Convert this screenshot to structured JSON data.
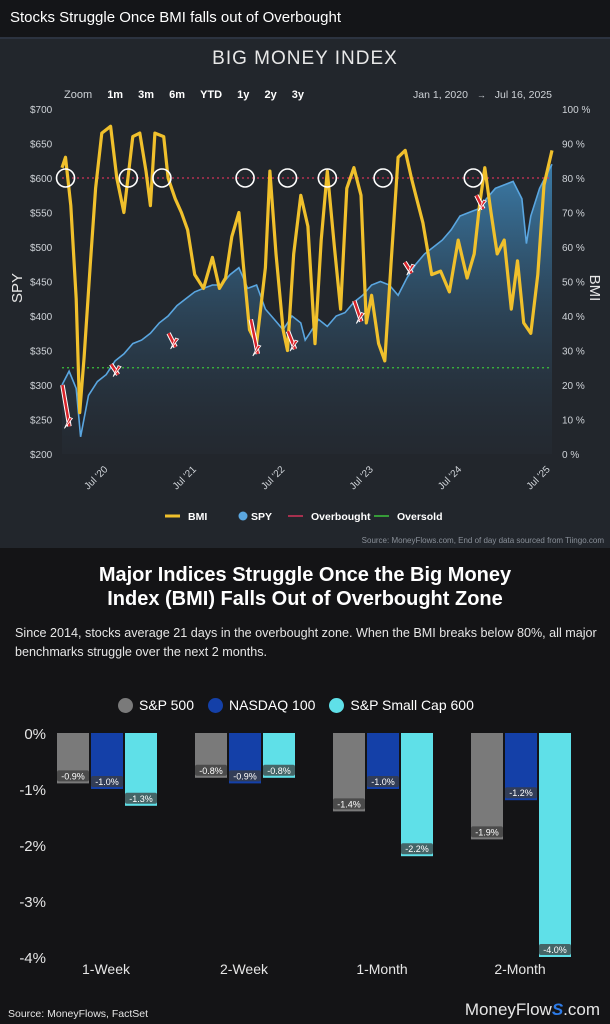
{
  "header": {
    "title": "Stocks Struggle Once BMI falls out of Overbought"
  },
  "bmi_panel": {
    "title": "BIG MONEY INDEX",
    "zoom_label": "Zoom",
    "zoom_options": [
      "1m",
      "3m",
      "6m",
      "YTD",
      "1y",
      "2y",
      "3y"
    ],
    "date_from": "Jan 1, 2020",
    "date_arrow": "→",
    "date_to": "Jul 16, 2025",
    "source": "Source: MoneyFlows.com, End of day data sourced from Tiingo.com"
  },
  "bars_panel": {
    "headline_line1": "Major Indices Struggle Once the Big Money",
    "headline_line2": "Index (BMI) Falls Out of Overbought Zone",
    "description": "Since 2014, stocks average 21 days in the overbought zone. When the BMI breaks below 80%, all major benchmarks struggle over the next 2 months.",
    "source": "Source: MoneyFlows, FactSet",
    "brand_a": "MoneyFlow",
    "brand_b": "S",
    "brand_c": ".com"
  },
  "colors": {
    "bmi": "#f0c02c",
    "spy": "#5aa6e0",
    "overbought": "#d2335a",
    "oversold": "#3cc23c",
    "sp500": "#7a7a7a",
    "nasdaq": "#1440a8",
    "smallcap": "#5fe0e8"
  },
  "chart_data": [
    {
      "type": "line",
      "title": "BIG MONEY INDEX",
      "x_ticks": [
        "Jul '20",
        "Jul '21",
        "Jul '22",
        "Jul '23",
        "Jul '24",
        "Jul '25"
      ],
      "y_left": {
        "label": "SPY",
        "range": [
          200,
          700
        ],
        "ticks": [
          "$200",
          "$250",
          "$300",
          "$350",
          "$400",
          "$450",
          "$500",
          "$550",
          "$600",
          "$650",
          "$700"
        ]
      },
      "y_right": {
        "label": "BMI",
        "range": [
          0,
          100
        ],
        "ticks": [
          "0 %",
          "10 %",
          "20 %",
          "30 %",
          "40 %",
          "50 %",
          "60 %",
          "70 %",
          "80 %",
          "90 %",
          "100 %"
        ]
      },
      "overbought_level": 80,
      "oversold_level": 25,
      "legend": [
        "BMI",
        "SPY",
        "Overbought",
        "Oversold"
      ],
      "series": [
        {
          "name": "BMI",
          "axis": "right",
          "x": [
            2020.0,
            2020.04,
            2020.1,
            2020.16,
            2020.2,
            2020.25,
            2020.32,
            2020.38,
            2020.45,
            2020.55,
            2020.62,
            2020.7,
            2020.8,
            2020.88,
            2020.95,
            2021.0,
            2021.05,
            2021.15,
            2021.2,
            2021.28,
            2021.35,
            2021.42,
            2021.5,
            2021.6,
            2021.7,
            2021.78,
            2021.85,
            2021.92,
            2022.0,
            2022.05,
            2022.12,
            2022.2,
            2022.3,
            2022.35,
            2022.42,
            2022.5,
            2022.55,
            2022.62,
            2022.7,
            2022.78,
            2022.86,
            2022.93,
            2023.0,
            2023.08,
            2023.15,
            2023.22,
            2023.3,
            2023.38,
            2023.44,
            2023.5,
            2023.58,
            2023.65,
            2023.72,
            2023.8,
            2023.88,
            2023.95,
            2024.0,
            2024.08,
            2024.18,
            2024.28,
            2024.38,
            2024.48,
            2024.58,
            2024.66,
            2024.72,
            2024.78,
            2024.85,
            2024.92,
            2025.0,
            2025.08,
            2025.15,
            2025.22,
            2025.3,
            2025.38,
            2025.45,
            2025.54
          ],
          "values": [
            83,
            86,
            72,
            45,
            12,
            28,
            55,
            77,
            93,
            95,
            80,
            70,
            92,
            93,
            82,
            72,
            93,
            92,
            80,
            74,
            70,
            65,
            52,
            48,
            57,
            48,
            51,
            63,
            70,
            55,
            36,
            32,
            54,
            82,
            58,
            36,
            30,
            58,
            75,
            66,
            32,
            62,
            82,
            60,
            42,
            77,
            83,
            75,
            38,
            46,
            32,
            27,
            55,
            86,
            88,
            80,
            75,
            67,
            52,
            53,
            47,
            62,
            51,
            58,
            72,
            83,
            70,
            58,
            62,
            42,
            56,
            38,
            35,
            52,
            78,
            88
          ]
        },
        {
          "name": "SPY",
          "axis": "left",
          "x": [
            2020.0,
            2020.08,
            2020.16,
            2020.21,
            2020.3,
            2020.4,
            2020.5,
            2020.6,
            2020.7,
            2020.8,
            2020.9,
            2021.0,
            2021.1,
            2021.2,
            2021.3,
            2021.4,
            2021.5,
            2021.6,
            2021.7,
            2021.8,
            2021.9,
            2022.0,
            2022.1,
            2022.2,
            2022.3,
            2022.4,
            2022.5,
            2022.6,
            2022.7,
            2022.75,
            2022.8,
            2022.9,
            2023.0,
            2023.1,
            2023.2,
            2023.3,
            2023.4,
            2023.5,
            2023.6,
            2023.7,
            2023.8,
            2023.9,
            2024.0,
            2024.1,
            2024.2,
            2024.3,
            2024.4,
            2024.5,
            2024.6,
            2024.7,
            2024.8,
            2024.9,
            2025.0,
            2025.1,
            2025.2,
            2025.25,
            2025.3,
            2025.4,
            2025.54
          ],
          "values": [
            300,
            320,
            295,
            225,
            285,
            305,
            315,
            335,
            345,
            360,
            365,
            375,
            390,
            400,
            415,
            425,
            435,
            440,
            445,
            445,
            460,
            470,
            440,
            445,
            410,
            395,
            380,
            400,
            390,
            365,
            375,
            395,
            385,
            400,
            405,
            420,
            430,
            445,
            450,
            445,
            430,
            455,
            475,
            490,
            500,
            510,
            525,
            545,
            550,
            555,
            570,
            585,
            590,
            595,
            570,
            505,
            545,
            585,
            620
          ]
        }
      ]
    },
    {
      "type": "bar",
      "categories": [
        "1-Week",
        "2-Week",
        "1-Month",
        "2-Month"
      ],
      "series": [
        {
          "name": "S&P 500",
          "values": [
            -0.9,
            -0.8,
            -1.4,
            -1.9
          ]
        },
        {
          "name": "NASDAQ 100",
          "values": [
            -1.0,
            -0.9,
            -1.0,
            -1.2
          ]
        },
        {
          "name": "S&P Small Cap 600",
          "values": [
            -1.3,
            -0.8,
            -2.2,
            -4.0
          ]
        }
      ],
      "ylim": [
        -4,
        0
      ],
      "y_ticks": [
        "0%",
        "-1%",
        "-2%",
        "-3%",
        "-4%"
      ],
      "value_labels": [
        [
          "-0.9%",
          "-1.0%",
          "-1.3%"
        ],
        [
          "-0.8%",
          "-0.9%",
          "-0.8%"
        ],
        [
          "-1.4%",
          "-1.0%",
          "-2.2%"
        ],
        [
          "-1.9%",
          "-1.2%",
          "-4.0%"
        ]
      ]
    }
  ]
}
